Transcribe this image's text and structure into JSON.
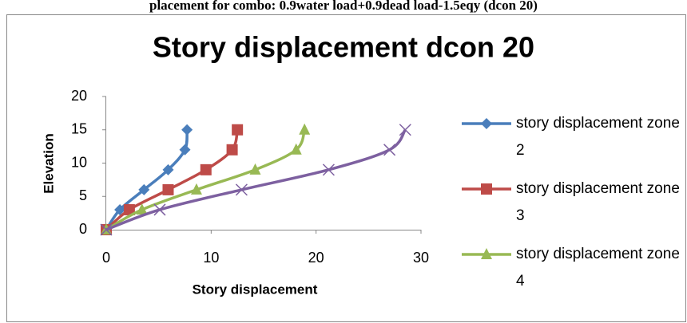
{
  "caption": "placement for combo: 0.9water load+0.9dead load-1.5eqy (dcon 20)",
  "chart_data": {
    "type": "line",
    "title": "Story displacement dcon 20",
    "x_label": "Story displacement",
    "y_label": "Elevation",
    "xlim": [
      0,
      30
    ],
    "xticks": [
      0,
      10,
      20,
      30
    ],
    "ylim": [
      0,
      20
    ],
    "yticks": [
      0,
      5,
      10,
      15,
      20
    ],
    "smooth": true,
    "grid": false,
    "legend": "right",
    "series": [
      {
        "name": "story displacement zone 2",
        "color": "#4a7ebb",
        "marker": "diamond",
        "x": [
          0,
          1.3,
          3.6,
          5.9,
          7.5,
          7.7
        ],
        "values": [
          0,
          3,
          6,
          9,
          12,
          15
        ]
      },
      {
        "name": "story displacement zone 3",
        "color": "#be4b48",
        "marker": "square",
        "x": [
          0,
          2.2,
          5.9,
          9.5,
          12.0,
          12.5
        ],
        "values": [
          0,
          3,
          6,
          9,
          12,
          15
        ]
      },
      {
        "name": "story displacement zone 4",
        "color": "#98b954",
        "marker": "triangle",
        "x": [
          0,
          3.4,
          8.6,
          14.2,
          18.1,
          18.9
        ],
        "values": [
          0,
          3,
          6,
          9,
          12,
          15
        ]
      },
      {
        "color": "#7d60a0",
        "marker": "x",
        "x": [
          0,
          5.1,
          12.9,
          21.2,
          27.0,
          28.5
        ],
        "values": [
          0,
          3,
          6,
          9,
          12,
          15
        ]
      }
    ]
  }
}
